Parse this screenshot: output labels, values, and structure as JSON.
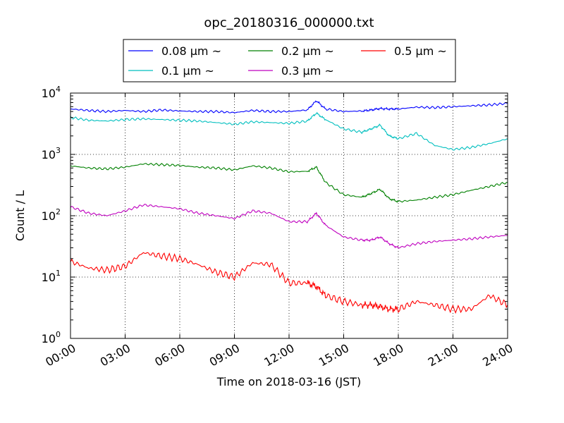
{
  "chart_data": {
    "type": "line",
    "title": "opc_20180316_000000.txt",
    "xlabel": "Time on 2018-03-16 (JST)",
    "ylabel": "Count / L",
    "y_scale": "log",
    "ylim": [
      1,
      10000
    ],
    "xlim": [
      "00:00",
      "24:00"
    ],
    "x_ticks": [
      "00:00",
      "03:00",
      "06:00",
      "09:00",
      "12:00",
      "15:00",
      "18:00",
      "21:00",
      "24:00"
    ],
    "y_ticks": [
      {
        "base": "10",
        "exp": "0"
      },
      {
        "base": "10",
        "exp": "1"
      },
      {
        "base": "10",
        "exp": "2"
      },
      {
        "base": "10",
        "exp": "3"
      },
      {
        "base": "10",
        "exp": "4"
      }
    ],
    "grid": true,
    "legend_position": "top",
    "x": [
      "00:00",
      "01:00",
      "02:00",
      "03:00",
      "04:00",
      "05:00",
      "06:00",
      "07:00",
      "08:00",
      "09:00",
      "10:00",
      "11:00",
      "12:00",
      "13:00",
      "13:30",
      "14:00",
      "15:00",
      "16:00",
      "16:30",
      "17:00",
      "17:30",
      "18:00",
      "19:00",
      "20:00",
      "21:00",
      "22:00",
      "23:00",
      "24:00"
    ],
    "series": [
      {
        "name": "0.08 μm ~",
        "color": "#0000ff",
        "values": [
          5500,
          5200,
          5000,
          5200,
          5000,
          5300,
          5100,
          5000,
          5000,
          4800,
          5200,
          5000,
          5000,
          5300,
          7500,
          5500,
          5000,
          5100,
          5300,
          5600,
          5500,
          5500,
          5900,
          5800,
          6000,
          6200,
          6400,
          6800
        ]
      },
      {
        "name": "0.1 μm ~",
        "color": "#00bfbf",
        "values": [
          4000,
          3600,
          3500,
          3700,
          3800,
          3700,
          3600,
          3500,
          3300,
          3100,
          3400,
          3300,
          3200,
          3500,
          4700,
          3700,
          2600,
          2300,
          2600,
          3000,
          2000,
          1800,
          2200,
          1400,
          1200,
          1300,
          1500,
          1800
        ]
      },
      {
        "name": "0.2 μm ~",
        "color": "#008000",
        "values": [
          650,
          600,
          580,
          620,
          700,
          680,
          660,
          620,
          600,
          560,
          650,
          600,
          520,
          530,
          620,
          350,
          220,
          200,
          230,
          270,
          190,
          170,
          180,
          200,
          220,
          260,
          300,
          350
        ]
      },
      {
        "name": "0.3 μm ~",
        "color": "#bf00bf",
        "values": [
          140,
          110,
          100,
          120,
          150,
          140,
          130,
          110,
          100,
          90,
          120,
          110,
          80,
          80,
          110,
          70,
          45,
          40,
          40,
          45,
          35,
          30,
          35,
          38,
          40,
          42,
          45,
          48
        ]
      },
      {
        "name": "0.5 μm ~",
        "color": "#ff0000",
        "values": [
          18,
          14,
          13,
          15,
          25,
          22,
          20,
          16,
          12,
          10,
          17,
          16,
          8,
          8,
          7,
          5,
          4,
          3.5,
          3.5,
          3.3,
          3,
          3,
          4,
          3.5,
          3,
          3,
          5,
          3.5
        ]
      }
    ]
  }
}
